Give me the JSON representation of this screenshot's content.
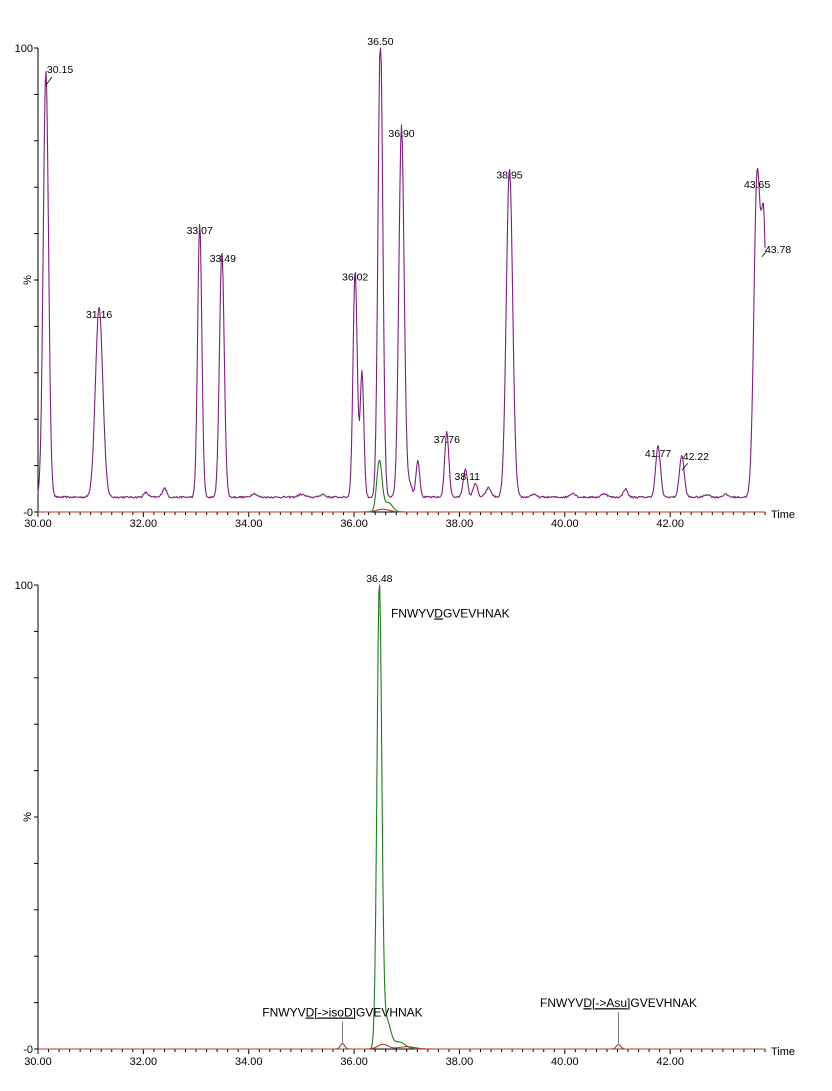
{
  "chart_data": [
    {
      "type": "line",
      "panel": "top",
      "x_axis_label": "Time",
      "y_axis_label": "%",
      "y_ticks": [
        {
          "value": 0,
          "label": "-0"
        },
        {
          "value": 100,
          "label": "100"
        }
      ],
      "xlim": [
        30.0,
        43.8
      ],
      "ylim": [
        0,
        100
      ],
      "x_ticks": [
        "30.00",
        "32.00",
        "34.00",
        "36.00",
        "38.00",
        "40.00",
        "42.00"
      ],
      "x_tick_values": [
        30,
        32,
        34,
        36,
        38,
        40,
        42
      ],
      "series": [
        {
          "color": "#7b1f7b",
          "baseline": 3.2,
          "noise": 0.4,
          "peaks": [
            {
              "x": 30.15,
              "y": 92,
              "w": 0.05
            },
            {
              "x": 31.16,
              "y": 41,
              "w": 0.07
            },
            {
              "x": 32.05,
              "y": 1.0,
              "w": 0.04
            },
            {
              "x": 32.4,
              "y": 2.0,
              "w": 0.04
            },
            {
              "x": 33.07,
              "y": 59,
              "w": 0.04
            },
            {
              "x": 33.49,
              "y": 53,
              "w": 0.045
            },
            {
              "x": 34.1,
              "y": 0.8,
              "w": 0.05
            },
            {
              "x": 35.0,
              "y": 0.6,
              "w": 0.06
            },
            {
              "x": 35.4,
              "y": 0.6,
              "w": 0.05
            },
            {
              "x": 36.02,
              "y": 49,
              "w": 0.04
            },
            {
              "x": 36.15,
              "y": 27,
              "w": 0.035
            },
            {
              "x": 36.5,
              "y": 100,
              "w": 0.045
            },
            {
              "x": 36.9,
              "y": 80,
              "w": 0.05
            },
            {
              "x": 37.05,
              "y": 3,
              "w": 0.05
            },
            {
              "x": 37.21,
              "y": 8,
              "w": 0.035
            },
            {
              "x": 37.76,
              "y": 14,
              "w": 0.04
            },
            {
              "x": 38.11,
              "y": 6,
              "w": 0.04
            },
            {
              "x": 38.3,
              "y": 3,
              "w": 0.04
            },
            {
              "x": 38.55,
              "y": 2,
              "w": 0.05
            },
            {
              "x": 38.95,
              "y": 71,
              "w": 0.06
            },
            {
              "x": 39.4,
              "y": 0.6,
              "w": 0.05
            },
            {
              "x": 40.15,
              "y": 0.9,
              "w": 0.05
            },
            {
              "x": 40.75,
              "y": 0.8,
              "w": 0.05
            },
            {
              "x": 41.15,
              "y": 1.8,
              "w": 0.04
            },
            {
              "x": 41.77,
              "y": 11,
              "w": 0.045
            },
            {
              "x": 42.22,
              "y": 9,
              "w": 0.045
            },
            {
              "x": 42.7,
              "y": 0.6,
              "w": 0.05
            },
            {
              "x": 43.05,
              "y": 0.6,
              "w": 0.05
            },
            {
              "x": 43.65,
              "y": 69,
              "w": 0.06
            },
            {
              "x": 43.78,
              "y": 55,
              "w": 0.05
            }
          ]
        },
        {
          "color": "#1e7b1e",
          "baseline": 0.0,
          "noise": 0,
          "peaks": [
            {
              "x": 36.48,
              "y": 11,
              "w": 0.05
            },
            {
              "x": 36.65,
              "y": 2,
              "w": 0.08
            }
          ]
        },
        {
          "color": "#b8382a",
          "baseline": 0.0,
          "noise": 0,
          "peaks": [
            {
              "x": 36.55,
              "y": 0.6,
              "w": 0.12
            }
          ]
        }
      ],
      "peak_labels": [
        {
          "text": "30.15",
          "x": 30.15,
          "y": 92
        },
        {
          "text": "31.16",
          "x": 31.16,
          "y": 41
        },
        {
          "text": "33.07",
          "x": 33.07,
          "y": 59
        },
        {
          "text": "33.49",
          "x": 33.49,
          "y": 53
        },
        {
          "text": "36.02",
          "x": 36.02,
          "y": 49
        },
        {
          "text": "36.50",
          "x": 36.5,
          "y": 100
        },
        {
          "text": "36.90",
          "x": 36.9,
          "y": 80
        },
        {
          "text": "37.76",
          "x": 37.76,
          "y": 14
        },
        {
          "text": "38.11",
          "x": 38.11,
          "y": 6
        },
        {
          "text": "38.95",
          "x": 38.95,
          "y": 71
        },
        {
          "text": "41.77",
          "x": 41.77,
          "y": 11
        },
        {
          "text": "42.22",
          "x": 42.22,
          "y": 9
        },
        {
          "text": "43.65",
          "x": 43.65,
          "y": 69
        },
        {
          "text": "43.78",
          "x": 43.78,
          "y": 55
        }
      ]
    },
    {
      "type": "line",
      "panel": "bottom",
      "x_axis_label": "Time",
      "y_axis_label": "%",
      "y_ticks": [
        {
          "value": 0,
          "label": "-0"
        },
        {
          "value": 100,
          "label": "100"
        }
      ],
      "xlim": [
        30.0,
        43.8
      ],
      "ylim": [
        0,
        100
      ],
      "x_ticks": [
        "30.00",
        "32.00",
        "34.00",
        "36.00",
        "38.00",
        "40.00",
        "42.00"
      ],
      "x_tick_values": [
        30,
        32,
        34,
        36,
        38,
        40,
        42
      ],
      "series": [
        {
          "color": "#1e7b1e",
          "baseline": 0.0,
          "noise": 0,
          "peaks": [
            {
              "x": 36.48,
              "y": 100,
              "w": 0.045
            },
            {
              "x": 36.62,
              "y": 6,
              "w": 0.07
            },
            {
              "x": 36.85,
              "y": 1.5,
              "w": 0.12
            }
          ]
        },
        {
          "color": "#b8382a",
          "baseline": 0.0,
          "noise": 0,
          "peaks": [
            {
              "x": 35.78,
              "y": 1.2,
              "w": 0.04
            },
            {
              "x": 36.55,
              "y": 1.0,
              "w": 0.1
            },
            {
              "x": 37.0,
              "y": 0.5,
              "w": 0.15
            },
            {
              "x": 41.02,
              "y": 1.0,
              "w": 0.04
            }
          ]
        }
      ],
      "peak_labels": [
        {
          "text": "36.48",
          "x": 36.48,
          "y": 100
        }
      ],
      "annotations": [
        {
          "prefix": "FNWYV",
          "underlined": "D",
          "suffix": "GVEVHNAK",
          "x": 36.7,
          "y": 93,
          "leader": false
        },
        {
          "prefix": "FNWYV",
          "underlined": "D[->isoD]",
          "suffix": "GVEVHNAK",
          "x": 35.78,
          "y": 7,
          "leader": true,
          "target_y": 1.2
        },
        {
          "prefix": "FNWYV",
          "underlined": "D[->Asu]",
          "suffix": "GVEVHNAK",
          "x": 41.02,
          "y": 9,
          "leader": true,
          "target_y": 1.0
        }
      ]
    }
  ]
}
